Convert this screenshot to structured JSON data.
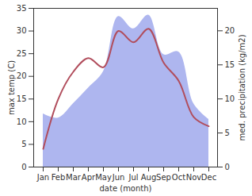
{
  "chart_data": {
    "type": "line",
    "x_label": "date (month)",
    "y_label": "max temp (C)",
    "y2_label": "med. precipitation (kg/m2)",
    "categories": [
      "Jan",
      "Feb",
      "Mar",
      "Apr",
      "May",
      "Jun",
      "Jul",
      "Aug",
      "Sep",
      "Oct",
      "Nov",
      "Dec"
    ],
    "ylim": [
      0,
      35
    ],
    "yticks": [
      0,
      5,
      10,
      15,
      20,
      25,
      30,
      35
    ],
    "y2lim": [
      0,
      23.3
    ],
    "y2ticks": [
      0,
      5,
      10,
      15,
      20
    ],
    "grid": false,
    "series": [
      {
        "type": "area",
        "axis": "y2",
        "color": "#aeb6ef",
        "values": [
          7.8,
          7.2,
          9.3,
          11.6,
          14,
          22.1,
          20.3,
          22.3,
          16.5,
          16.9,
          9.3,
          7
        ]
      },
      {
        "type": "line",
        "color": "#b14d5c",
        "values": [
          4,
          15,
          21,
          24,
          22,
          30,
          27.5,
          30.5,
          23,
          19,
          11,
          9
        ]
      }
    ]
  }
}
